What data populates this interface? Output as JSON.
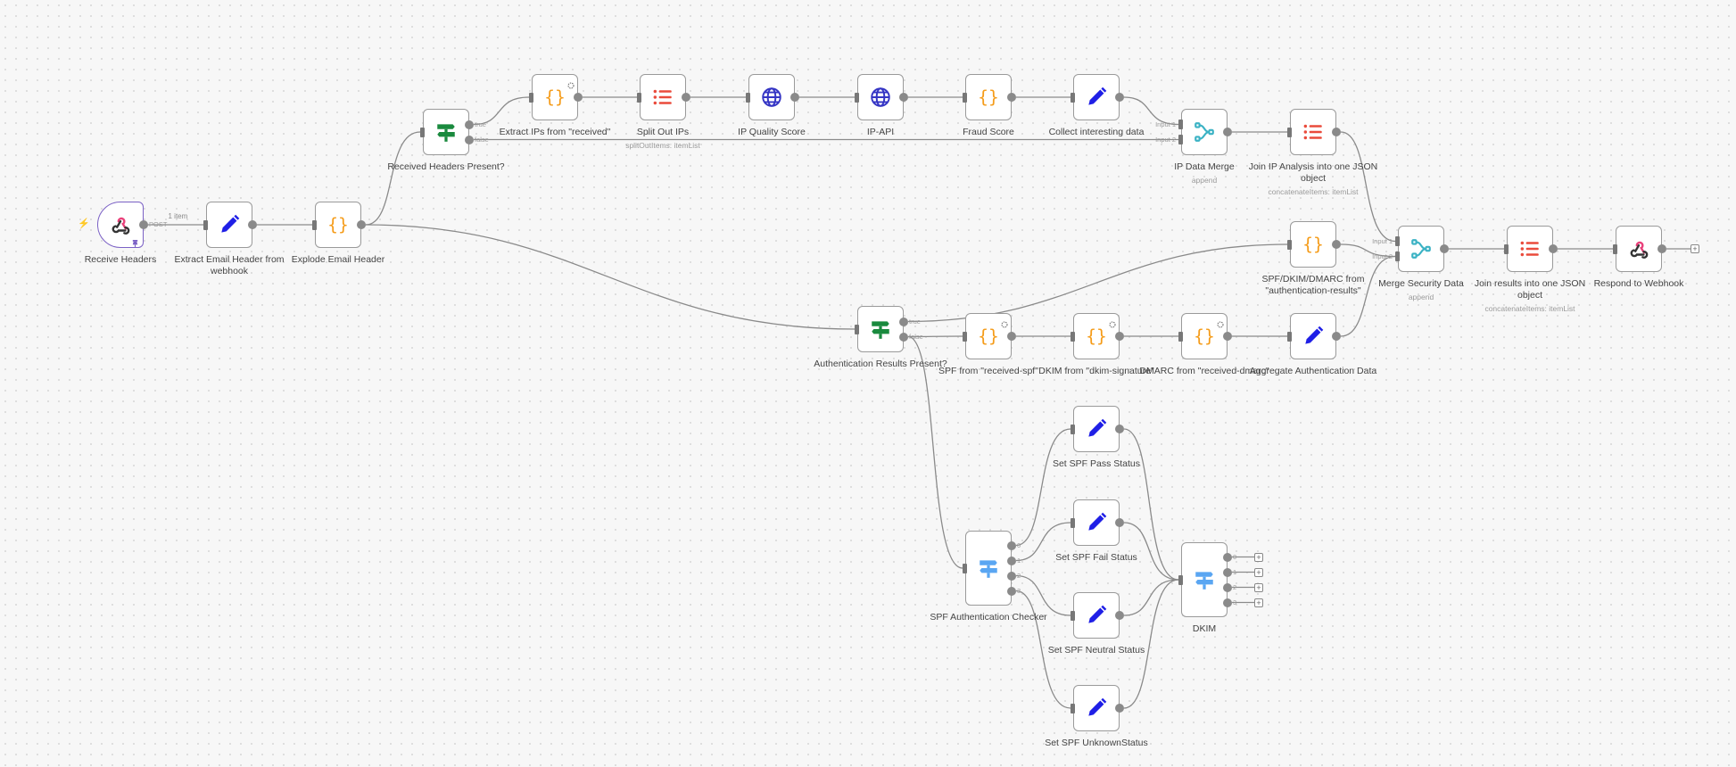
{
  "canvas": {
    "background": "#f7f7f7",
    "edge_color": "#8a8a8a"
  },
  "colors": {
    "pencil": "#1f1fe6",
    "braces": "#f59c1a",
    "list": "#ea4b3c",
    "globe": "#3535c4",
    "merge": "#3bb2c4",
    "if": "#1a8a3e",
    "switch": "#5aa6f2",
    "webhook": "#e9407a",
    "trigger_border": "#7b61c5"
  },
  "nodes": [
    {
      "id": "rh",
      "label": "Receive Headers",
      "icon": "webhook-icon",
      "trigger": true
    },
    {
      "id": "eeh",
      "label": "Extract Email Header from webhook",
      "icon": "pencil-icon"
    },
    {
      "id": "exp",
      "label": "Explode Email Header",
      "icon": "braces-icon"
    },
    {
      "id": "rhp",
      "label": "Received Headers Present?",
      "icon": "if-signpost-icon",
      "outputs": [
        "true",
        "false"
      ]
    },
    {
      "id": "eip",
      "label": "Extract IPs from \"received\"",
      "icon": "braces-icon",
      "badge": true
    },
    {
      "id": "soi",
      "label": "Split Out IPs",
      "icon": "list-icon",
      "subtitle": "splitOutItems: itemList"
    },
    {
      "id": "iqs",
      "label": "IP Quality Score",
      "icon": "globe-icon"
    },
    {
      "id": "api",
      "label": "IP-API",
      "icon": "globe-icon"
    },
    {
      "id": "fs",
      "label": "Fraud Score",
      "icon": "braces-icon"
    },
    {
      "id": "cid",
      "label": "Collect interesting data",
      "icon": "pencil-icon"
    },
    {
      "id": "idm",
      "label": "IP Data Merge",
      "icon": "merge-icon",
      "subtitle": "append",
      "inputs": [
        "Input 1",
        "Input 2"
      ]
    },
    {
      "id": "jip",
      "label": "Join IP Analysis into one JSON object",
      "icon": "list-icon",
      "subtitle": "concatenateItems: itemList"
    },
    {
      "id": "sdd",
      "label": "SPF/DKIM/DMARC from \"authentication-results\"",
      "icon": "braces-icon"
    },
    {
      "id": "msd",
      "label": "Merge Security Data",
      "icon": "merge-icon",
      "subtitle": "append",
      "inputs": [
        "Input 1",
        "Input 2"
      ]
    },
    {
      "id": "jr",
      "label": "Join results into one JSON object",
      "icon": "list-icon",
      "subtitle": "concatenateItems: itemList"
    },
    {
      "id": "rtw",
      "label": "Respond to Webhook",
      "icon": "webhook-icon",
      "open_output": true
    },
    {
      "id": "arp",
      "label": "Authentication Results Present?",
      "icon": "if-signpost-icon",
      "outputs": [
        "true",
        "false"
      ]
    },
    {
      "id": "spf",
      "label": "SPF from \"received-spf\"",
      "icon": "braces-icon",
      "badge": true
    },
    {
      "id": "dkim",
      "label": "DKIM from \"dkim-signature\"",
      "icon": "braces-icon",
      "badge": true
    },
    {
      "id": "dmarc",
      "label": "DMARC from \"received-dmarc\"",
      "icon": "braces-icon",
      "badge": true
    },
    {
      "id": "agg",
      "label": "Aggregate Authentication Data",
      "icon": "pencil-icon"
    },
    {
      "id": "pass",
      "label": "Set SPF Pass Status",
      "icon": "pencil-icon"
    },
    {
      "id": "fail",
      "label": "Set SPF Fail Status",
      "icon": "pencil-icon"
    },
    {
      "id": "neu",
      "label": "Set SPF Neutral Status",
      "icon": "pencil-icon"
    },
    {
      "id": "unk",
      "label": "Set SPF UnknownStatus",
      "icon": "pencil-icon"
    },
    {
      "id": "spfc",
      "label": "SPF Authentication Checker",
      "icon": "switch-signpost-icon",
      "outputs": [
        "0",
        "1",
        "2",
        "3"
      ]
    },
    {
      "id": "dsw",
      "label": "DKIM",
      "icon": "switch-signpost-icon",
      "outputs": [
        "0",
        "1",
        "2",
        "3"
      ],
      "open_output": true
    }
  ],
  "trigger_output_label": "POST",
  "connections": [
    {
      "from": "rh",
      "to": "eeh",
      "label": "1 item"
    },
    {
      "from": "eeh",
      "to": "exp"
    },
    {
      "from": "exp",
      "to": "rhp"
    },
    {
      "from": "exp",
      "to": "arp"
    },
    {
      "from": "rhp",
      "out": 0,
      "to": "eip"
    },
    {
      "from": "rhp",
      "out": 1,
      "to": "idm",
      "in": 1
    },
    {
      "from": "eip",
      "to": "soi"
    },
    {
      "from": "soi",
      "to": "iqs"
    },
    {
      "from": "iqs",
      "to": "api"
    },
    {
      "from": "api",
      "to": "fs"
    },
    {
      "from": "fs",
      "to": "cid"
    },
    {
      "from": "cid",
      "to": "idm",
      "in": 0
    },
    {
      "from": "idm",
      "to": "jip"
    },
    {
      "from": "jip",
      "to": "msd",
      "in": 0
    },
    {
      "from": "sdd",
      "to": "msd",
      "in": 1
    },
    {
      "from": "agg",
      "to": "msd",
      "in": 1
    },
    {
      "from": "arp",
      "out": 0,
      "to": "sdd"
    },
    {
      "from": "arp",
      "out": 1,
      "to": "spf"
    },
    {
      "from": "arp",
      "out": 1,
      "to": "spfc"
    },
    {
      "from": "spf",
      "to": "dkim"
    },
    {
      "from": "dkim",
      "to": "dmarc"
    },
    {
      "from": "dmarc",
      "to": "agg"
    },
    {
      "from": "msd",
      "to": "jr"
    },
    {
      "from": "jr",
      "to": "rtw"
    },
    {
      "from": "spfc",
      "out": 0,
      "to": "pass"
    },
    {
      "from": "spfc",
      "out": 1,
      "to": "fail"
    },
    {
      "from": "spfc",
      "out": 2,
      "to": "neu"
    },
    {
      "from": "spfc",
      "out": 3,
      "to": "unk"
    },
    {
      "from": "pass",
      "to": "dsw"
    },
    {
      "from": "fail",
      "to": "dsw"
    },
    {
      "from": "neu",
      "to": "dsw"
    },
    {
      "from": "unk",
      "to": "dsw"
    }
  ],
  "add_button_label": "+"
}
